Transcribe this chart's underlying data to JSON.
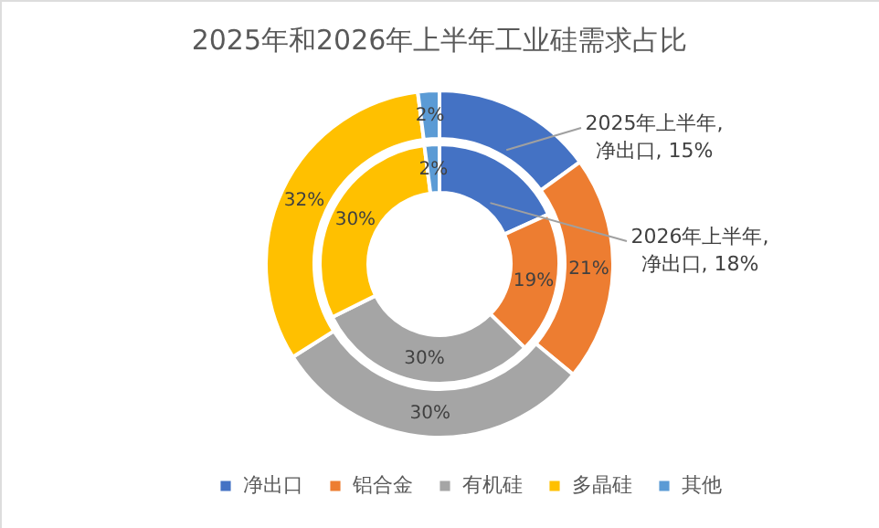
{
  "chart_data": {
    "type": "donut",
    "title": "2025年和2026年上半年工业硅需求占比",
    "categories": [
      "净出口",
      "铝合金",
      "有机硅",
      "多晶硅",
      "其他"
    ],
    "colors": [
      "#4472c4",
      "#ed7d31",
      "#a5a5a5",
      "#ffc000",
      "#5b9bd5"
    ],
    "series": [
      {
        "values": [
          15,
          21,
          30,
          32,
          2
        ],
        "value_labels": [
          null,
          "21%",
          "30%",
          "32%",
          "2%"
        ]
      },
      {
        "values": [
          18,
          19,
          30,
          30,
          2
        ],
        "value_labels": [
          null,
          "19%",
          "30%",
          "30%",
          "2%"
        ]
      }
    ],
    "annotations": [
      "2025年上半年,\n净出口, 15%",
      "2026年上半年,\n净出口, 18%"
    ],
    "legend": "bottom"
  }
}
